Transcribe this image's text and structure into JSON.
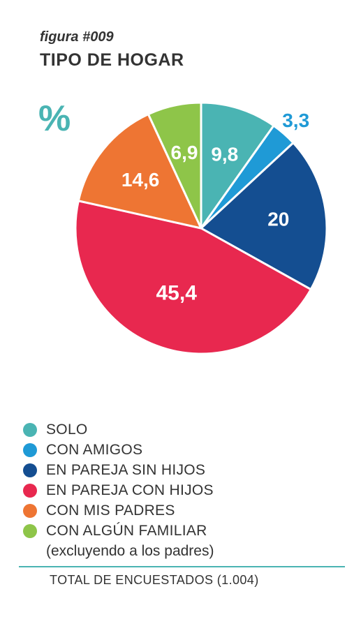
{
  "header": {
    "figure_label": "figura #009",
    "title": "TIPO DE HOGAR",
    "unit_symbol": "%"
  },
  "colors": {
    "teal": "#4ab4b3",
    "light_blue": "#1f9ad6",
    "dark_blue": "#144e91",
    "red": "#e8284f",
    "orange": "#ee7533",
    "green": "#8ec549"
  },
  "chart_data": {
    "type": "pie",
    "unit": "%",
    "slices": [
      {
        "label": "SOLO",
        "value": 9.8,
        "display": "9,8",
        "color": "#4ab4b3"
      },
      {
        "label": "CON AMIGOS",
        "value": 3.3,
        "display": "3,3",
        "color": "#1f9ad6"
      },
      {
        "label": "EN PAREJA SIN HIJOS",
        "value": 20,
        "display": "20",
        "color": "#144e91"
      },
      {
        "label": "EN PAREJA CON HIJOS",
        "value": 45.4,
        "display": "45,4",
        "color": "#e8284f"
      },
      {
        "label": "CON MIS PADRES",
        "value": 14.6,
        "display": "14,6",
        "color": "#ee7533"
      },
      {
        "label": "CON ALGÚN FAMILIAR",
        "value": 6.9,
        "display": "6,9",
        "color": "#8ec549"
      }
    ],
    "legend_placement": "bottom",
    "legend_note": "(excluyendo a los padres)"
  },
  "footer": {
    "total": "TOTAL DE ENCUESTADOS (1.004)"
  }
}
